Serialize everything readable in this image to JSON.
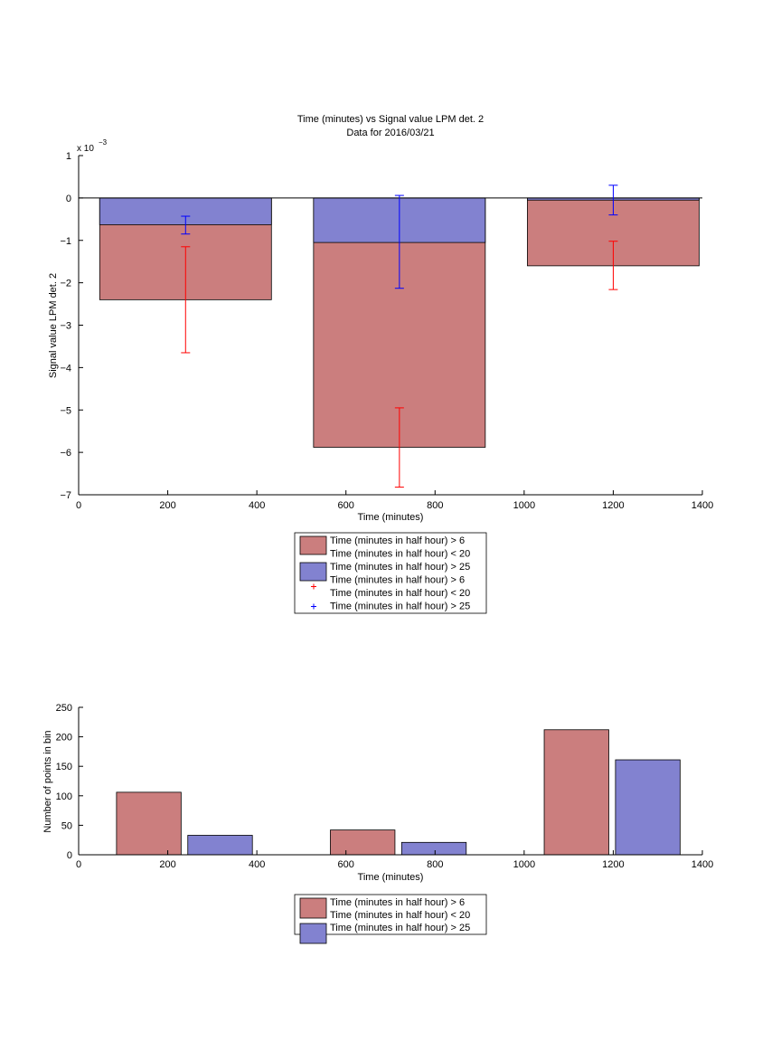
{
  "chart_data": [
    {
      "type": "bar",
      "title": "Time (minutes) vs Signal value LPM det. 2",
      "subtitle": "Data for 2016/03/21",
      "xlabel": "Time (minutes)",
      "ylabel": "Signal value LPM det. 2",
      "y_multiplier": "x 10",
      "y_multiplier_exp": "−3",
      "xlim": [
        0,
        1400
      ],
      "ylim": [
        -7,
        1
      ],
      "xticks": [
        0,
        200,
        400,
        600,
        800,
        1000,
        1200,
        1400
      ],
      "yticks": [
        1,
        0,
        -1,
        -2,
        -3,
        -4,
        -5,
        -6,
        -7
      ],
      "ytick_labels": [
        "1",
        "0",
        "−1",
        "−2",
        "−3",
        "−4",
        "−5",
        "−6",
        "−7"
      ],
      "grid": false,
      "categories": [
        240,
        720,
        1200
      ],
      "series": [
        {
          "name": "Time (minutes in half hour) > 6\nTime (minutes in half hour) < 20",
          "color": "#cb7e7e",
          "values": [
            -2.4,
            -5.88,
            -1.6
          ],
          "error_low": [
            -3.65,
            -6.82,
            -2.16
          ],
          "error_high": [
            -1.15,
            -4.95,
            -1.02
          ],
          "error_color": "#ff0000"
        },
        {
          "name": "Time (minutes in half hour) > 25",
          "color": "#8282d0",
          "values": [
            -0.63,
            -1.05,
            -0.05
          ],
          "error_low": [
            -0.85,
            -2.13,
            -0.4
          ],
          "error_high": [
            -0.43,
            0.06,
            0.3
          ],
          "error_color": "#0000ff"
        }
      ],
      "legend": {
        "placement": "below",
        "entries": [
          {
            "kind": "patch",
            "color": "#cb7e7e",
            "lines": [
              "Time (minutes in half hour) > 6",
              "Time (minutes in half hour) < 20"
            ]
          },
          {
            "kind": "patch",
            "color": "#8282d0",
            "lines": [
              "Time (minutes in half hour) > 25"
            ]
          },
          {
            "kind": "marker",
            "color": "#ff0000",
            "marker": "+",
            "lines": [
              "Time (minutes in half hour) > 6",
              "Time (minutes in half hour) < 20"
            ]
          },
          {
            "kind": "marker",
            "color": "#0000ff",
            "marker": "+",
            "lines": [
              "Time (minutes in half hour) > 25"
            ]
          }
        ]
      }
    },
    {
      "type": "bar",
      "title": "",
      "xlabel": "Time (minutes)",
      "ylabel": "Number of points in bin",
      "xlim": [
        0,
        1400
      ],
      "ylim": [
        0,
        250
      ],
      "xticks": [
        0,
        200,
        400,
        600,
        800,
        1000,
        1200,
        1400
      ],
      "yticks": [
        0,
        50,
        100,
        150,
        200,
        250
      ],
      "grid": false,
      "bars": [
        {
          "series": 0,
          "x_start": 85,
          "x_end": 230,
          "value": 106
        },
        {
          "series": 1,
          "x_start": 245,
          "x_end": 390,
          "value": 33
        },
        {
          "series": 0,
          "x_start": 565,
          "x_end": 710,
          "value": 42
        },
        {
          "series": 1,
          "x_start": 725,
          "x_end": 870,
          "value": 21
        },
        {
          "series": 0,
          "x_start": 1045,
          "x_end": 1190,
          "value": 212
        },
        {
          "series": 1,
          "x_start": 1205,
          "x_end": 1350,
          "value": 161
        }
      ],
      "series": [
        {
          "name": "Time (minutes in half hour) > 6\nTime (minutes in half hour) < 20",
          "color": "#cb7e7e"
        },
        {
          "name": "Time (minutes in half hour) > 25",
          "color": "#8282d0"
        }
      ],
      "legend": {
        "placement": "below",
        "entries": [
          {
            "kind": "patch",
            "color": "#cb7e7e",
            "lines": [
              "Time (minutes in half hour) > 6",
              "Time (minutes in half hour) < 20"
            ]
          },
          {
            "kind": "patch",
            "color": "#8282d0",
            "lines": [
              "Time (minutes in half hour) > 25"
            ]
          }
        ]
      }
    }
  ]
}
